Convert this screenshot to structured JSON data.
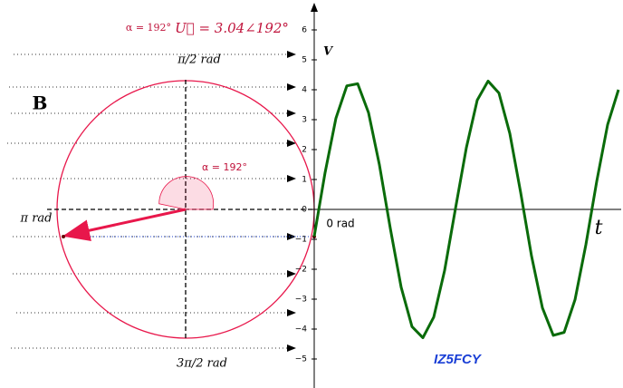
{
  "chart_data": {
    "type": "line",
    "y_label": "V",
    "x_label": "t",
    "origin_label": "0 rad",
    "x": [
      0,
      0.5,
      1,
      1.5,
      2,
      2.5,
      3,
      3.5,
      4,
      4.5,
      5,
      5.5,
      6,
      6.5,
      7,
      7.5,
      8,
      8.5,
      9,
      9.5,
      10,
      10.5,
      11,
      11.5,
      12,
      12.5,
      13,
      13.5,
      14
    ],
    "series": [
      {
        "color": "#0a6b0a",
        "values": [
          -0.9,
          1.23,
          3.05,
          4.13,
          4.2,
          3.23,
          1.49,
          -0.63,
          -2.6,
          -3.92,
          -4.29,
          -3.6,
          -2.04,
          0.03,
          2.06,
          3.65,
          4.29,
          3.89,
          2.54,
          0.56,
          -1.56,
          -3.29,
          -4.21,
          -4.11,
          -3.02,
          -1.18,
          0.94,
          2.83,
          4.0
        ]
      }
    ],
    "xlim": [
      0,
      14
    ],
    "ylim": [
      -6,
      7
    ],
    "yticks": [
      {
        "value": -5,
        "label": "−5"
      },
      {
        "value": -4,
        "label": "−4"
      },
      {
        "value": -3,
        "label": "−3"
      },
      {
        "value": -2,
        "label": "−2"
      },
      {
        "value": -1,
        "label": "−1"
      },
      0,
      1,
      2,
      3,
      4,
      5,
      6
    ],
    "grid": false
  },
  "diagram": {
    "alpha_top": "α = 192°",
    "phasor_label": "U⃗ = 3.04∠192°",
    "label_top": "π/2 rad",
    "label_left": "π rad",
    "label_bottom": "3π/2 rad",
    "panel": "B",
    "alpha_arc": "α = 192°",
    "watermark": "IZ5FCY"
  }
}
